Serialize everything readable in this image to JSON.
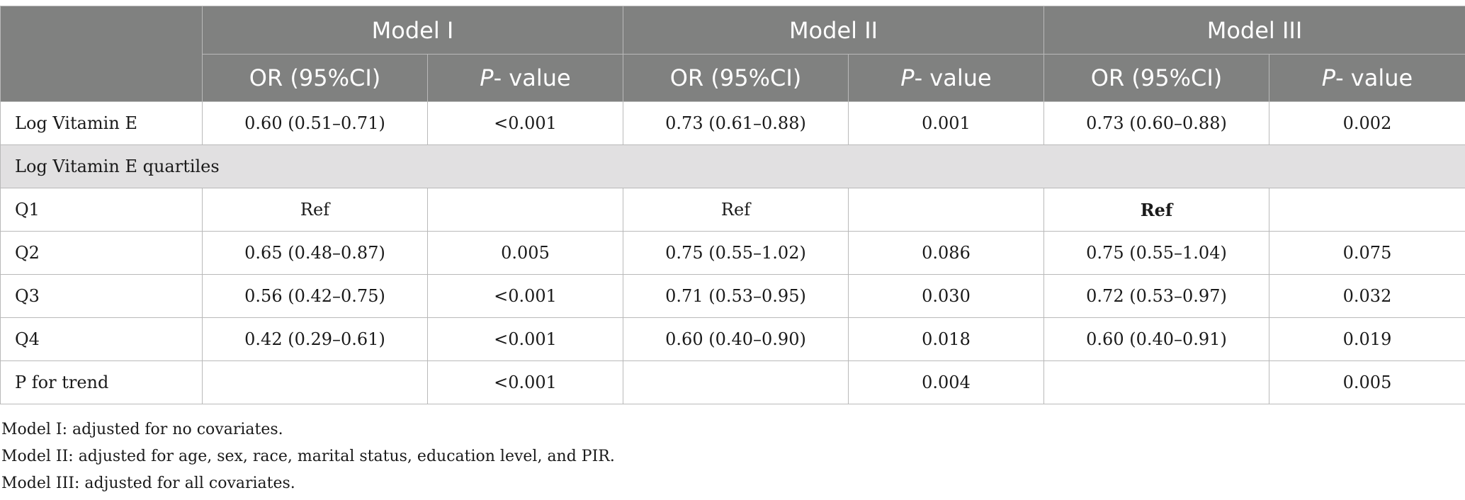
{
  "header": {
    "empty_corner": "",
    "models": [
      "Model I",
      "Model II",
      "Model III"
    ],
    "or_label": "OR (95%CI)",
    "p_italic": "P",
    "p_rest": "- value"
  },
  "rows": [
    {
      "label": "Log Vitamin E",
      "m1_or": "0.60 (0.51–0.71)",
      "m1_p": "<0.001",
      "m2_or": "0.73 (0.61–0.88)",
      "m2_p": "0.001",
      "m3_or": "0.73 (0.60–0.88)",
      "m3_p": "0.002"
    },
    {
      "section_label": "Log Vitamin E quartiles"
    },
    {
      "label": "Q1",
      "m1_or": "Ref",
      "m1_p": "",
      "m2_or": "Ref",
      "m2_p": "",
      "m3_or": "Ref",
      "m3_p": ""
    },
    {
      "label": "Q2",
      "m1_or": "0.65 (0.48–0.87)",
      "m1_p": "0.005",
      "m2_or": "0.75 (0.55–1.02)",
      "m2_p": "0.086",
      "m3_or": "0.75 (0.55–1.04)",
      "m3_p": "0.075"
    },
    {
      "label": "Q3",
      "m1_or": "0.56 (0.42–0.75)",
      "m1_p": "<0.001",
      "m2_or": "0.71 (0.53–0.95)",
      "m2_p": "0.030",
      "m3_or": "0.72 (0.53–0.97)",
      "m3_p": "0.032"
    },
    {
      "label": "Q4",
      "m1_or": "0.42 (0.29–0.61)",
      "m1_p": "<0.001",
      "m2_or": "0.60 (0.40–0.90)",
      "m2_p": "0.018",
      "m3_or": "0.60 (0.40–0.91)",
      "m3_p": "0.019"
    },
    {
      "label": "P for trend",
      "m1_or": "",
      "m1_p": "<0.001",
      "m2_or": "",
      "m2_p": "0.004",
      "m3_or": "",
      "m3_p": "0.005"
    }
  ],
  "notes": [
    "Model I: adjusted for no covariates.",
    "Model II: adjusted for age, sex, race, marital status, education level, and PIR.",
    "Model III: adjusted for all covariates."
  ],
  "colors": {
    "header_bg": "#808180",
    "section_bg": "#e1e0e1",
    "border": "#b9b9b9"
  }
}
